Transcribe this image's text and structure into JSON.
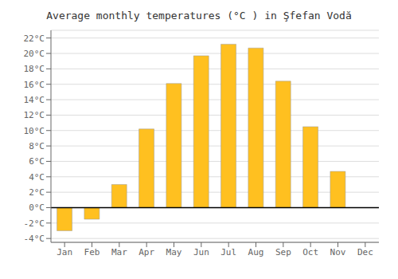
{
  "chart_data": {
    "type": "bar",
    "title": "Average monthly temperatures (°C ) in Şfefan Vodă",
    "categories": [
      "Jan",
      "Feb",
      "Mar",
      "Apr",
      "May",
      "Jun",
      "Jul",
      "Aug",
      "Sep",
      "Oct",
      "Nov",
      "Dec"
    ],
    "values": [
      -3.0,
      -1.5,
      3.0,
      10.2,
      16.1,
      19.7,
      21.2,
      20.7,
      16.4,
      10.5,
      4.7,
      0.0
    ],
    "color": "#FFC020",
    "ylim": [
      -4.5,
      23.0
    ],
    "yticks": [
      {
        "value": -4,
        "label": "-4°C"
      },
      {
        "value": -2,
        "label": "-2°C"
      },
      {
        "value": 0,
        "label": "0°C"
      },
      {
        "value": 2,
        "label": "2°C"
      },
      {
        "value": 4,
        "label": "4°C"
      },
      {
        "value": 6,
        "label": "6°C"
      },
      {
        "value": 8,
        "label": "8°C"
      },
      {
        "value": 10,
        "label": "10°C"
      },
      {
        "value": 12,
        "label": "12°C"
      },
      {
        "value": 14,
        "label": "14°C"
      },
      {
        "value": 16,
        "label": "16°C"
      },
      {
        "value": 18,
        "label": "18°C"
      },
      {
        "value": 20,
        "label": "20°C"
      },
      {
        "value": 22,
        "label": "22°C"
      }
    ],
    "grid": true
  }
}
